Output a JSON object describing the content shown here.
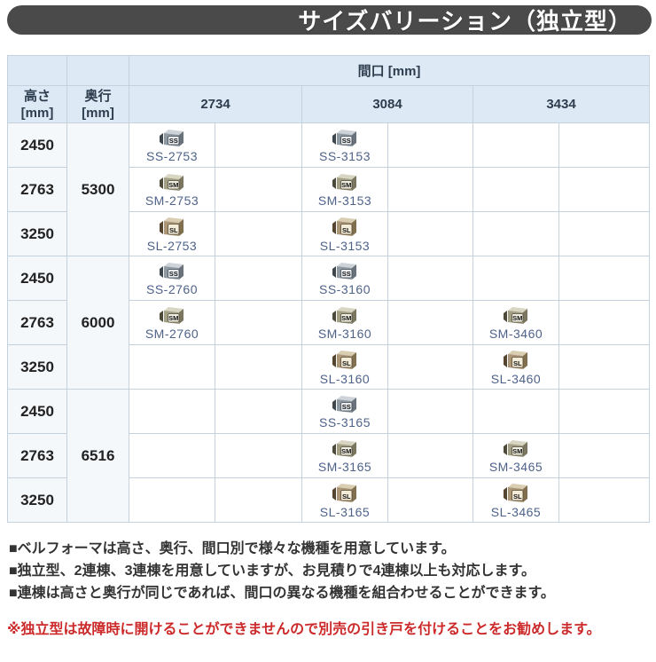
{
  "banner": {
    "title": "サイズバリーション（独立型）"
  },
  "table": {
    "maguchi_header": "間口 [mm]",
    "height_header": {
      "line1": "高さ",
      "line2": "[mm]"
    },
    "depth_header": {
      "line1": "奥行",
      "line2": "[mm]"
    },
    "width_values": [
      "2734",
      "3084",
      "3434"
    ],
    "depth_groups": [
      {
        "depth": "5300",
        "rows": [
          {
            "height": "2450",
            "cells": [
              {
                "type": "SS",
                "code": "SS-2753"
              },
              {
                "type": "SS",
                "code": "SS-3153"
              },
              null
            ]
          },
          {
            "height": "2763",
            "cells": [
              {
                "type": "SM",
                "code": "SM-2753"
              },
              {
                "type": "SM",
                "code": "SM-3153"
              },
              null
            ]
          },
          {
            "height": "3250",
            "cells": [
              {
                "type": "SL",
                "code": "SL-2753"
              },
              {
                "type": "SL",
                "code": "SL-3153"
              },
              null
            ]
          }
        ]
      },
      {
        "depth": "6000",
        "rows": [
          {
            "height": "2450",
            "cells": [
              {
                "type": "SS",
                "code": "SS-2760"
              },
              {
                "type": "SS",
                "code": "SS-3160"
              },
              null
            ]
          },
          {
            "height": "2763",
            "cells": [
              {
                "type": "SM",
                "code": "SM-2760"
              },
              {
                "type": "SM",
                "code": "SM-3160"
              },
              {
                "type": "SM",
                "code": "SM-3460"
              }
            ]
          },
          {
            "height": "3250",
            "cells": [
              null,
              {
                "type": "SL",
                "code": "SL-3160"
              },
              {
                "type": "SL",
                "code": "SL-3460"
              }
            ]
          }
        ]
      },
      {
        "depth": "6516",
        "rows": [
          {
            "height": "2450",
            "cells": [
              null,
              {
                "type": "SS",
                "code": "SS-3165"
              },
              null
            ]
          },
          {
            "height": "2763",
            "cells": [
              null,
              {
                "type": "SM",
                "code": "SM-3165"
              },
              {
                "type": "SM",
                "code": "SM-3465"
              }
            ]
          },
          {
            "height": "3250",
            "cells": [
              null,
              {
                "type": "SL",
                "code": "SL-3165"
              },
              {
                "type": "SL",
                "code": "SL-3465"
              }
            ]
          }
        ]
      }
    ]
  },
  "notes": [
    "■ベルフォーマは高さ、奥行、間口別で様々な機種を用意しています。",
    "■独立型、2連棟、3連棟を用意していますが、お見積りで4連棟以上も対応します。",
    "■連棟は高さと奥行が同じであれば、間口の異なる機種を組合わせることができます。"
  ],
  "warning": "※独立型は故障時に開けることができませんので別売の引き戸を付けることをお勧めします。",
  "colors": {
    "banner_bg": "#4a4a4a",
    "banner_text": "#ffffff",
    "header_bg": "#dde9f4",
    "row_label_bg": "#f5f8fb",
    "border": "#c5d2de",
    "code_text": "#4e6289",
    "note_text": "#333333",
    "warning_text": "#cc2a2a"
  },
  "icons": {
    "SS": {
      "flap": "#3f474e",
      "top": "#cdd3d8",
      "front": "#8f99a2",
      "side": "#6a737c",
      "label_bg": "#e9edf0",
      "label_text": "#111111",
      "tall": 0
    },
    "SM": {
      "flap": "#4e4a3a",
      "top": "#d8d5c2",
      "front": "#a39f84",
      "side": "#7a7660",
      "label_bg": "#f1efe1",
      "label_text": "#111111",
      "tall": 0
    },
    "SL": {
      "flap": "#55452f",
      "top": "#d9cdb2",
      "front": "#ab9777",
      "side": "#80704f",
      "label_bg": "#f3ecd9",
      "label_text": "#111111",
      "tall": 2
    }
  }
}
